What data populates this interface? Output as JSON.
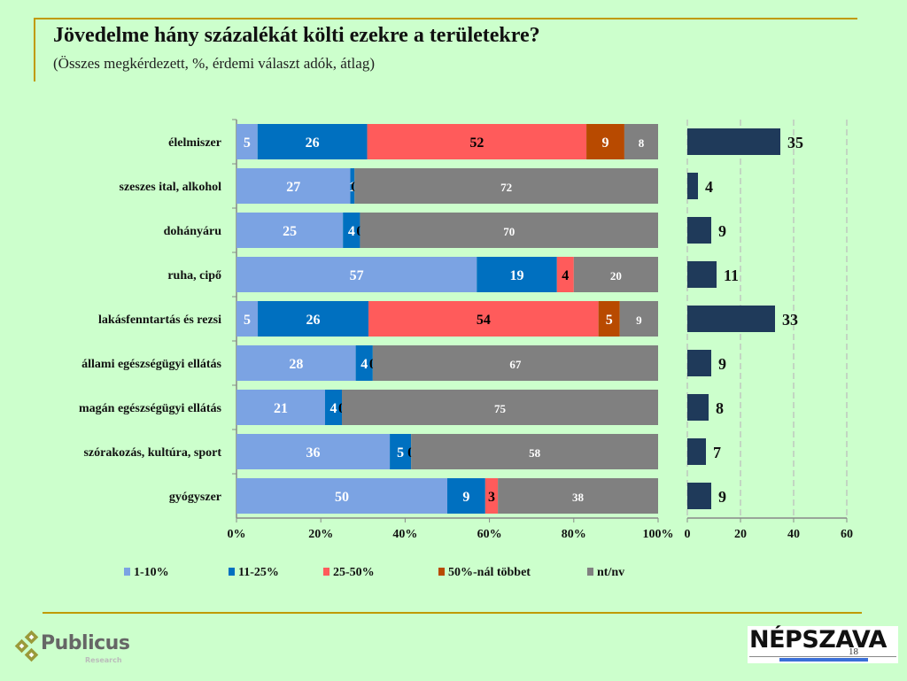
{
  "header": {
    "title": "Jövedelme hány százalékát költi ezekre a területekre?",
    "subtitle": "(Összes megkérdezett, %, érdemi választ adók, átlag)"
  },
  "logos": {
    "left_name": "Publicus",
    "left_sub": "Research",
    "right_name": "NÉPSZAVA"
  },
  "slide_number": "18",
  "chart_data": [
    {
      "type": "bar",
      "orientation": "horizontal",
      "stacked": "percent",
      "title": "",
      "xlabel": "",
      "ylabel": "",
      "xlim": [
        0,
        100
      ],
      "x_ticks": [
        "0%",
        "20%",
        "40%",
        "60%",
        "80%",
        "100%"
      ],
      "grid": false,
      "legend_position": "bottom",
      "categories": [
        "élelmiszer",
        "szeszes ital, alkohol",
        "dohányáru",
        "ruha, cipő",
        "lakásfenntartás és rezsi",
        "állami egészségügyi ellátás",
        "magán egészségügyi ellátás",
        "szórakozás, kultúra, sport",
        "gyógyszer"
      ],
      "series": [
        {
          "name": "1-10%",
          "color": "#7ba3e3",
          "label_color": "#ffffff",
          "values": [
            5,
            27,
            25,
            57,
            5,
            28,
            21,
            36,
            50
          ]
        },
        {
          "name": "11-25%",
          "color": "#0070c0",
          "label_color": "#ffffff",
          "values": [
            26,
            1,
            4,
            19,
            26,
            4,
            4,
            5,
            9
          ]
        },
        {
          "name": "25-50%",
          "color": "#ff5b5b",
          "label_color": "#000000",
          "values": [
            52,
            0,
            0,
            4,
            54,
            0,
            0,
            0,
            3
          ]
        },
        {
          "name": "50%-nál többet",
          "color": "#b84a00",
          "label_color": "#ffffff",
          "values": [
            9,
            0,
            0,
            0,
            5,
            0,
            0,
            0,
            0
          ]
        },
        {
          "name": "nt/nv",
          "color": "#808080",
          "label_color": "#ffffff",
          "values": [
            8,
            72,
            70,
            20,
            9,
            67,
            75,
            58,
            38
          ]
        }
      ]
    },
    {
      "type": "bar",
      "orientation": "horizontal",
      "title": "",
      "xlabel": "",
      "ylabel": "",
      "xlim": [
        0,
        60
      ],
      "x_ticks": [
        "0",
        "20",
        "40",
        "60"
      ],
      "grid": true,
      "categories": [
        "élelmiszer",
        "szeszes ital, alkohol",
        "dohányáru",
        "ruha, cipő",
        "lakásfenntartás és rezsi",
        "állami egészségügyi ellátás",
        "magán egészségügyi ellátás",
        "szórakozás, kultúra, sport",
        "gyógyszer"
      ],
      "series": [
        {
          "name": "átlag",
          "color": "#1f3a5a",
          "values": [
            35,
            4,
            9,
            11,
            33,
            9,
            8,
            7,
            9
          ]
        }
      ]
    }
  ]
}
